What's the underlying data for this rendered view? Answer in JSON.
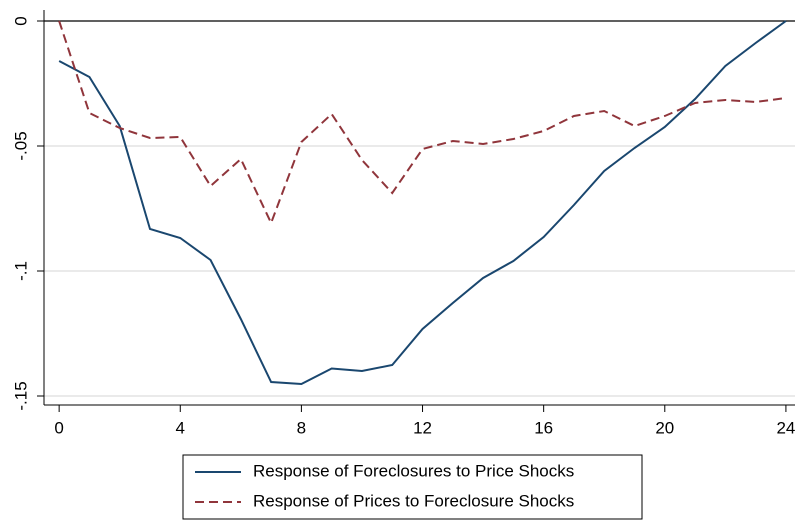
{
  "chart_data": {
    "type": "line",
    "x": [
      0,
      1,
      2,
      3,
      4,
      5,
      6,
      7,
      8,
      9,
      10,
      11,
      12,
      13,
      14,
      15,
      16,
      17,
      18,
      19,
      20,
      21,
      22,
      23,
      24
    ],
    "series": [
      {
        "name": "Response of Foreclosures to Price Shocks",
        "color": "#1a476f",
        "dash": false,
        "values": [
          -0.016,
          -0.0224,
          -0.042,
          -0.0832,
          -0.0868,
          -0.0956,
          -0.1192,
          -0.1444,
          -0.1452,
          -0.139,
          -0.14,
          -0.1376,
          -0.1232,
          -0.1128,
          -0.1028,
          -0.096,
          -0.0864,
          -0.0736,
          -0.06,
          -0.0508,
          -0.0424,
          -0.0312,
          -0.018,
          -0.0088,
          0
        ]
      },
      {
        "name": "Response of Prices to Foreclosure Shocks",
        "color": "#90353b",
        "dash": true,
        "values": [
          0,
          -0.0368,
          -0.0428,
          -0.0468,
          -0.0464,
          -0.066,
          -0.0552,
          -0.0808,
          -0.0484,
          -0.0372,
          -0.0556,
          -0.0688,
          -0.0512,
          -0.048,
          -0.0492,
          -0.0472,
          -0.044,
          -0.038,
          -0.036,
          -0.042,
          -0.038,
          -0.0328,
          -0.0316,
          -0.0324,
          -0.0308
        ]
      }
    ],
    "xlim": [
      -0.5,
      24.3
    ],
    "ylim": [
      -0.1536,
      0.0044
    ],
    "xticks": [
      0,
      4,
      8,
      12,
      16,
      20,
      24
    ],
    "yticks": [
      0,
      {
        "value": -0.05,
        "label": "-.05"
      },
      {
        "value": -0.1,
        "label": "-.1"
      },
      {
        "value": -0.15,
        "label": "-.15"
      }
    ],
    "grid": true,
    "legend": "bottom"
  }
}
